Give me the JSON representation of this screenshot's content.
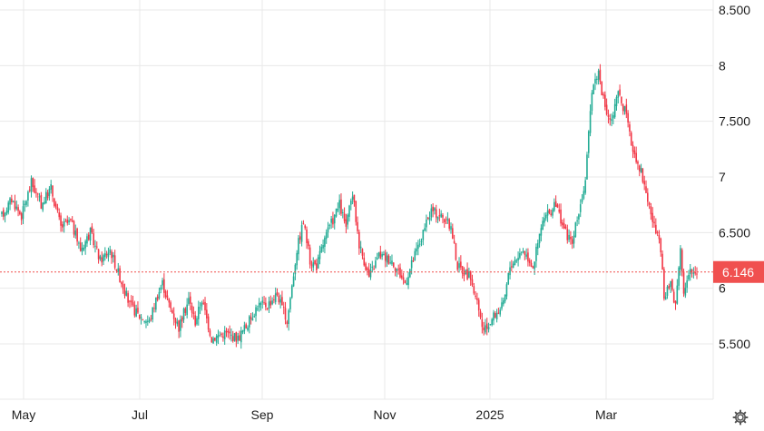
{
  "chart_data": {
    "type": "candlestick",
    "x_ticks": [
      "May",
      "Jul",
      "Sep",
      "Nov",
      "2025",
      "Mar"
    ],
    "y_ticks": [
      "8.500",
      "8",
      "7.500",
      "7",
      "6.500",
      "6",
      "5.500"
    ],
    "y_tick_values": [
      8.5,
      8,
      7.5,
      7,
      6.5,
      6,
      5.5
    ],
    "ylim": [
      5.0,
      8.6
    ],
    "grid": true,
    "current_price": 6.146,
    "current_price_label": "6.146",
    "colors": {
      "up": "#22ab94",
      "down": "#f23645",
      "price_tag": "#f0504f",
      "grid": "#e8e8e8"
    },
    "path_points": [
      [
        0,
        6.65
      ],
      [
        6,
        6.8
      ],
      [
        12,
        6.65
      ],
      [
        18,
        6.95
      ],
      [
        24,
        6.75
      ],
      [
        30,
        6.9
      ],
      [
        36,
        6.55
      ],
      [
        42,
        6.6
      ],
      [
        48,
        6.35
      ],
      [
        54,
        6.5
      ],
      [
        60,
        6.25
      ],
      [
        66,
        6.35
      ],
      [
        72,
        6.1
      ],
      [
        78,
        5.85
      ],
      [
        84,
        5.75
      ],
      [
        90,
        5.7
      ],
      [
        94,
        5.9
      ],
      [
        98,
        6.05
      ],
      [
        102,
        5.85
      ],
      [
        108,
        5.65
      ],
      [
        114,
        5.9
      ],
      [
        118,
        5.7
      ],
      [
        122,
        5.9
      ],
      [
        128,
        5.55
      ],
      [
        136,
        5.6
      ],
      [
        144,
        5.55
      ],
      [
        150,
        5.68
      ],
      [
        156,
        5.85
      ],
      [
        162,
        5.85
      ],
      [
        168,
        5.95
      ],
      [
        174,
        5.7
      ],
      [
        180,
        6.35
      ],
      [
        184,
        6.6
      ],
      [
        188,
        6.25
      ],
      [
        192,
        6.2
      ],
      [
        196,
        6.4
      ],
      [
        200,
        6.55
      ],
      [
        206,
        6.75
      ],
      [
        210,
        6.55
      ],
      [
        214,
        6.85
      ],
      [
        218,
        6.4
      ],
      [
        224,
        6.1
      ],
      [
        230,
        6.3
      ],
      [
        238,
        6.25
      ],
      [
        242,
        6.15
      ],
      [
        246,
        6.05
      ],
      [
        252,
        6.3
      ],
      [
        256,
        6.45
      ],
      [
        262,
        6.7
      ],
      [
        268,
        6.65
      ],
      [
        274,
        6.55
      ],
      [
        278,
        6.2
      ],
      [
        282,
        6.15
      ],
      [
        286,
        6.1
      ],
      [
        290,
        5.85
      ],
      [
        294,
        5.6
      ],
      [
        300,
        5.75
      ],
      [
        306,
        5.85
      ],
      [
        310,
        6.2
      ],
      [
        318,
        6.35
      ],
      [
        324,
        6.2
      ],
      [
        330,
        6.6
      ],
      [
        338,
        6.75
      ],
      [
        344,
        6.5
      ],
      [
        348,
        6.4
      ],
      [
        352,
        6.7
      ],
      [
        356,
        6.95
      ],
      [
        360,
        7.8
      ],
      [
        364,
        7.95
      ],
      [
        368,
        7.6
      ],
      [
        372,
        7.5
      ],
      [
        376,
        7.75
      ],
      [
        380,
        7.6
      ],
      [
        384,
        7.3
      ],
      [
        390,
        7.05
      ],
      [
        394,
        6.8
      ],
      [
        398,
        6.55
      ],
      [
        402,
        6.35
      ],
      [
        404,
        5.9
      ],
      [
        408,
        6.05
      ],
      [
        411,
        5.85
      ],
      [
        414,
        6.4
      ],
      [
        416,
        5.95
      ],
      [
        420,
        6.15
      ]
    ],
    "x_domain": [
      0,
      424
    ]
  },
  "settings": {
    "icon": "gear-icon"
  }
}
